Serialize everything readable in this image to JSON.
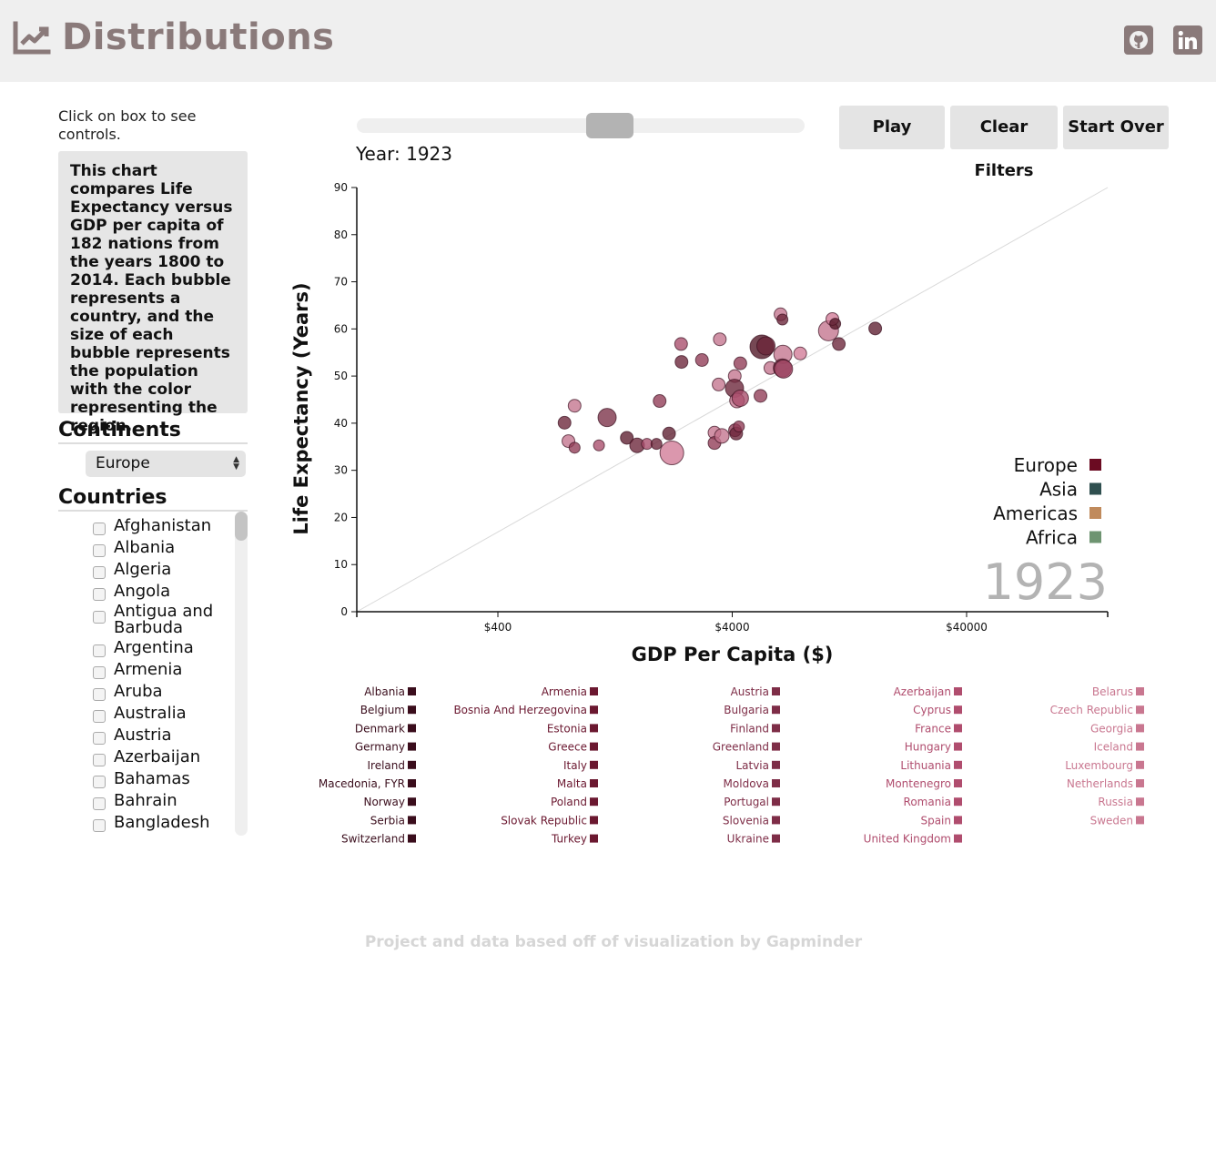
{
  "header": {
    "title": "Distributions",
    "icons": [
      "chart-line-icon",
      "github-icon",
      "linkedin-icon"
    ]
  },
  "sidebar": {
    "hint": "Click on box to see controls.",
    "description": "This chart compares Life Expectancy versus GDP per capita of 182 nations from the years 1800 to 2014. Each bubble represents a country, and the size of each bubble represents the population with the color representing the region.",
    "continents_title": "Continents",
    "continent_selected": "Europe",
    "countries_title": "Countries",
    "countries": [
      "Afghanistan",
      "Albania",
      "Algeria",
      "Angola",
      "Antigua and Barbuda",
      "Argentina",
      "Armenia",
      "Aruba",
      "Australia",
      "Austria",
      "Azerbaijan",
      "Bahamas",
      "Bahrain",
      "Bangladesh"
    ]
  },
  "controls": {
    "year_label": "Year: 1923",
    "slider_value": 0.52,
    "play_label": "Play",
    "clear_label": "Clear Filters",
    "start_over_label": "Start Over"
  },
  "colors": {
    "europe": "#6b0b22",
    "asia": "#2f4f4f",
    "americas": "#c08a5c",
    "africa": "#6e9471",
    "text_muted": "#8a7a7a",
    "footer": "#d6d6d6"
  },
  "chart_data": {
    "type": "scatter",
    "xlabel": "GDP Per Capita ($)",
    "ylabel": "Life Expectancy (Years)",
    "x_scale": "log",
    "xlim": [
      100,
      160000
    ],
    "ylim": [
      0,
      90
    ],
    "x_ticks": [
      {
        "value": 400,
        "label": "$400"
      },
      {
        "value": 4000,
        "label": "$4000"
      },
      {
        "value": 40000,
        "label": "$40000"
      }
    ],
    "y_ticks": [
      0,
      10,
      20,
      30,
      40,
      50,
      60,
      70,
      80,
      90
    ],
    "year_watermark": "1923",
    "reference_line": {
      "from": [
        100,
        0
      ],
      "to": [
        160000,
        90
      ]
    },
    "legend": [
      {
        "name": "Europe",
        "color": "#6b0b22"
      },
      {
        "name": "Asia",
        "color": "#2f4f4f"
      },
      {
        "name": "Americas",
        "color": "#c08a5c"
      },
      {
        "name": "Africa",
        "color": "#6e9471"
      }
    ],
    "points": [
      {
        "x": 770,
        "y": 40.1,
        "r": 7,
        "c": "#6a2438"
      },
      {
        "x": 800,
        "y": 36.2,
        "r": 7,
        "c": "#c3738d"
      },
      {
        "x": 850,
        "y": 43.7,
        "r": 7,
        "c": "#c3738d"
      },
      {
        "x": 850,
        "y": 34.8,
        "r": 6,
        "c": "#8f3a55"
      },
      {
        "x": 1080,
        "y": 35.3,
        "r": 6,
        "c": "#a84b6a"
      },
      {
        "x": 1170,
        "y": 41.2,
        "r": 10,
        "c": "#7a2f47"
      },
      {
        "x": 1420,
        "y": 36.9,
        "r": 7,
        "c": "#5c1c2e"
      },
      {
        "x": 1570,
        "y": 35.3,
        "r": 8,
        "c": "#6a2438"
      },
      {
        "x": 1730,
        "y": 35.6,
        "r": 6,
        "c": "#a84b6a"
      },
      {
        "x": 1900,
        "y": 35.6,
        "r": 6,
        "c": "#6a2438"
      },
      {
        "x": 1960,
        "y": 44.7,
        "r": 7,
        "c": "#8f3a55"
      },
      {
        "x": 2210,
        "y": 33.7,
        "r": 13,
        "c": "#d17a96"
      },
      {
        "x": 2150,
        "y": 37.8,
        "r": 7,
        "c": "#5c1c2e"
      },
      {
        "x": 2420,
        "y": 56.8,
        "r": 7,
        "c": "#a84b6a"
      },
      {
        "x": 2430,
        "y": 53.0,
        "r": 7,
        "c": "#6a2438"
      },
      {
        "x": 2970,
        "y": 53.4,
        "r": 7,
        "c": "#8f3a55"
      },
      {
        "x": 3360,
        "y": 38.0,
        "r": 7,
        "c": "#c3738d"
      },
      {
        "x": 3360,
        "y": 35.8,
        "r": 7,
        "c": "#8f3a55"
      },
      {
        "x": 3500,
        "y": 48.2,
        "r": 7,
        "c": "#c3738d"
      },
      {
        "x": 3540,
        "y": 57.8,
        "r": 7,
        "c": "#c3738d"
      },
      {
        "x": 3610,
        "y": 37.3,
        "r": 8,
        "c": "#c3738d"
      },
      {
        "x": 4100,
        "y": 50.0,
        "r": 7,
        "c": "#c3738d"
      },
      {
        "x": 4090,
        "y": 47.4,
        "r": 10,
        "c": "#6a2438"
      },
      {
        "x": 4190,
        "y": 44.8,
        "r": 8,
        "c": "#c3738d"
      },
      {
        "x": 4330,
        "y": 45.3,
        "r": 9,
        "c": "#a84b6a"
      },
      {
        "x": 4330,
        "y": 52.7,
        "r": 7,
        "c": "#8f3a55"
      },
      {
        "x": 4110,
        "y": 38.5,
        "r": 7,
        "c": "#8f3a55"
      },
      {
        "x": 4160,
        "y": 37.8,
        "r": 7,
        "c": "#6a2438"
      },
      {
        "x": 4270,
        "y": 39.3,
        "r": 6,
        "c": "#8f3a55"
      },
      {
        "x": 5280,
        "y": 45.8,
        "r": 7,
        "c": "#8f3a55"
      },
      {
        "x": 5350,
        "y": 56.2,
        "r": 13,
        "c": "#4f1424"
      },
      {
        "x": 5570,
        "y": 56.4,
        "r": 10,
        "c": "#6a2438"
      },
      {
        "x": 5820,
        "y": 51.7,
        "r": 7,
        "c": "#c3738d"
      },
      {
        "x": 6430,
        "y": 63.1,
        "r": 7,
        "c": "#c3738d"
      },
      {
        "x": 6550,
        "y": 62.0,
        "r": 6,
        "c": "#6a2438"
      },
      {
        "x": 6580,
        "y": 54.6,
        "r": 10,
        "c": "#c3738d"
      },
      {
        "x": 6550,
        "y": 51.7,
        "r": 10,
        "c": "#6a2438"
      },
      {
        "x": 6620,
        "y": 51.5,
        "r": 10,
        "c": "#a84b6a"
      },
      {
        "x": 7800,
        "y": 54.8,
        "r": 7,
        "c": "#d17a96"
      },
      {
        "x": 10300,
        "y": 59.6,
        "r": 11,
        "c": "#c3738d"
      },
      {
        "x": 10700,
        "y": 62.1,
        "r": 7,
        "c": "#d17a96"
      },
      {
        "x": 11000,
        "y": 61.1,
        "r": 6,
        "c": "#4f1424"
      },
      {
        "x": 11400,
        "y": 56.8,
        "r": 7,
        "c": "#6a2438"
      },
      {
        "x": 16300,
        "y": 60.1,
        "r": 7,
        "c": "#5c1c2e"
      }
    ]
  },
  "country_legend": {
    "columns": [
      {
        "color": "#3a0d1c",
        "items": [
          "Albania",
          "Belgium",
          "Denmark",
          "Germany",
          "Ireland",
          "Macedonia, FYR",
          "Norway",
          "Serbia",
          "Switzerland"
        ]
      },
      {
        "color": "#6b1830",
        "items": [
          "Armenia",
          "Bosnia And Herzegovina",
          "Estonia",
          "Greece",
          "Italy",
          "Malta",
          "Poland",
          "Slovak Republic",
          "Turkey"
        ]
      },
      {
        "color": "#7e2d47",
        "items": [
          "Austria",
          "Bulgaria",
          "Finland",
          "Greenland",
          "Latvia",
          "Moldova",
          "Portugal",
          "Slovenia",
          "Ukraine"
        ]
      },
      {
        "color": "#b04d6e",
        "items": [
          "Azerbaijan",
          "Cyprus",
          "France",
          "Hungary",
          "Lithuania",
          "Montenegro",
          "Romania",
          "Spain",
          "United Kingdom"
        ]
      },
      {
        "color": "#c97790",
        "items": [
          "Belarus",
          "Czech Republic",
          "Georgia",
          "Iceland",
          "Luxembourg",
          "Netherlands",
          "Russia",
          "Sweden"
        ]
      }
    ]
  },
  "footer": {
    "text": "Project and data based off of visualization by Gapminder"
  }
}
